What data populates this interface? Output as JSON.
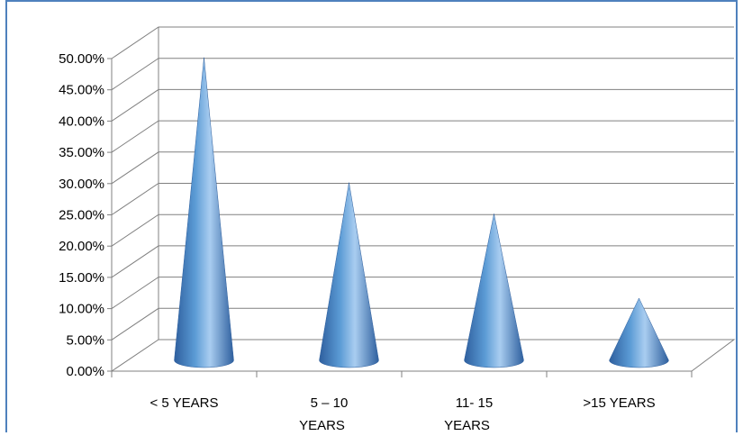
{
  "chart_data": {
    "type": "bar",
    "style": "3d-cone",
    "categories": [
      "< 5 YEARS",
      "5 – 10 YEARS",
      "11- 15 YEARS",
      ">15 YEARS"
    ],
    "category_lines": [
      [
        "< 5 YEARS"
      ],
      [
        "5 – 10",
        "YEARS"
      ],
      [
        "11- 15",
        "YEARS"
      ],
      [
        ">15 YEARS"
      ]
    ],
    "values": [
      0.47,
      0.27,
      0.22,
      0.085
    ],
    "ylim": [
      0,
      0.5
    ],
    "yticks": [
      "0.00%",
      "5.00%",
      "10.00%",
      "15.00%",
      "20.00%",
      "25.00%",
      "30.00%",
      "35.00%",
      "40.00%",
      "45.00%",
      "50.00%"
    ],
    "grid": true,
    "colors": {
      "cone_dark": "#2e5f9e",
      "cone_mid": "#5b9bd5",
      "cone_light": "#a9cdf0",
      "grid": "#808080",
      "frame": "#4f81bd"
    }
  }
}
